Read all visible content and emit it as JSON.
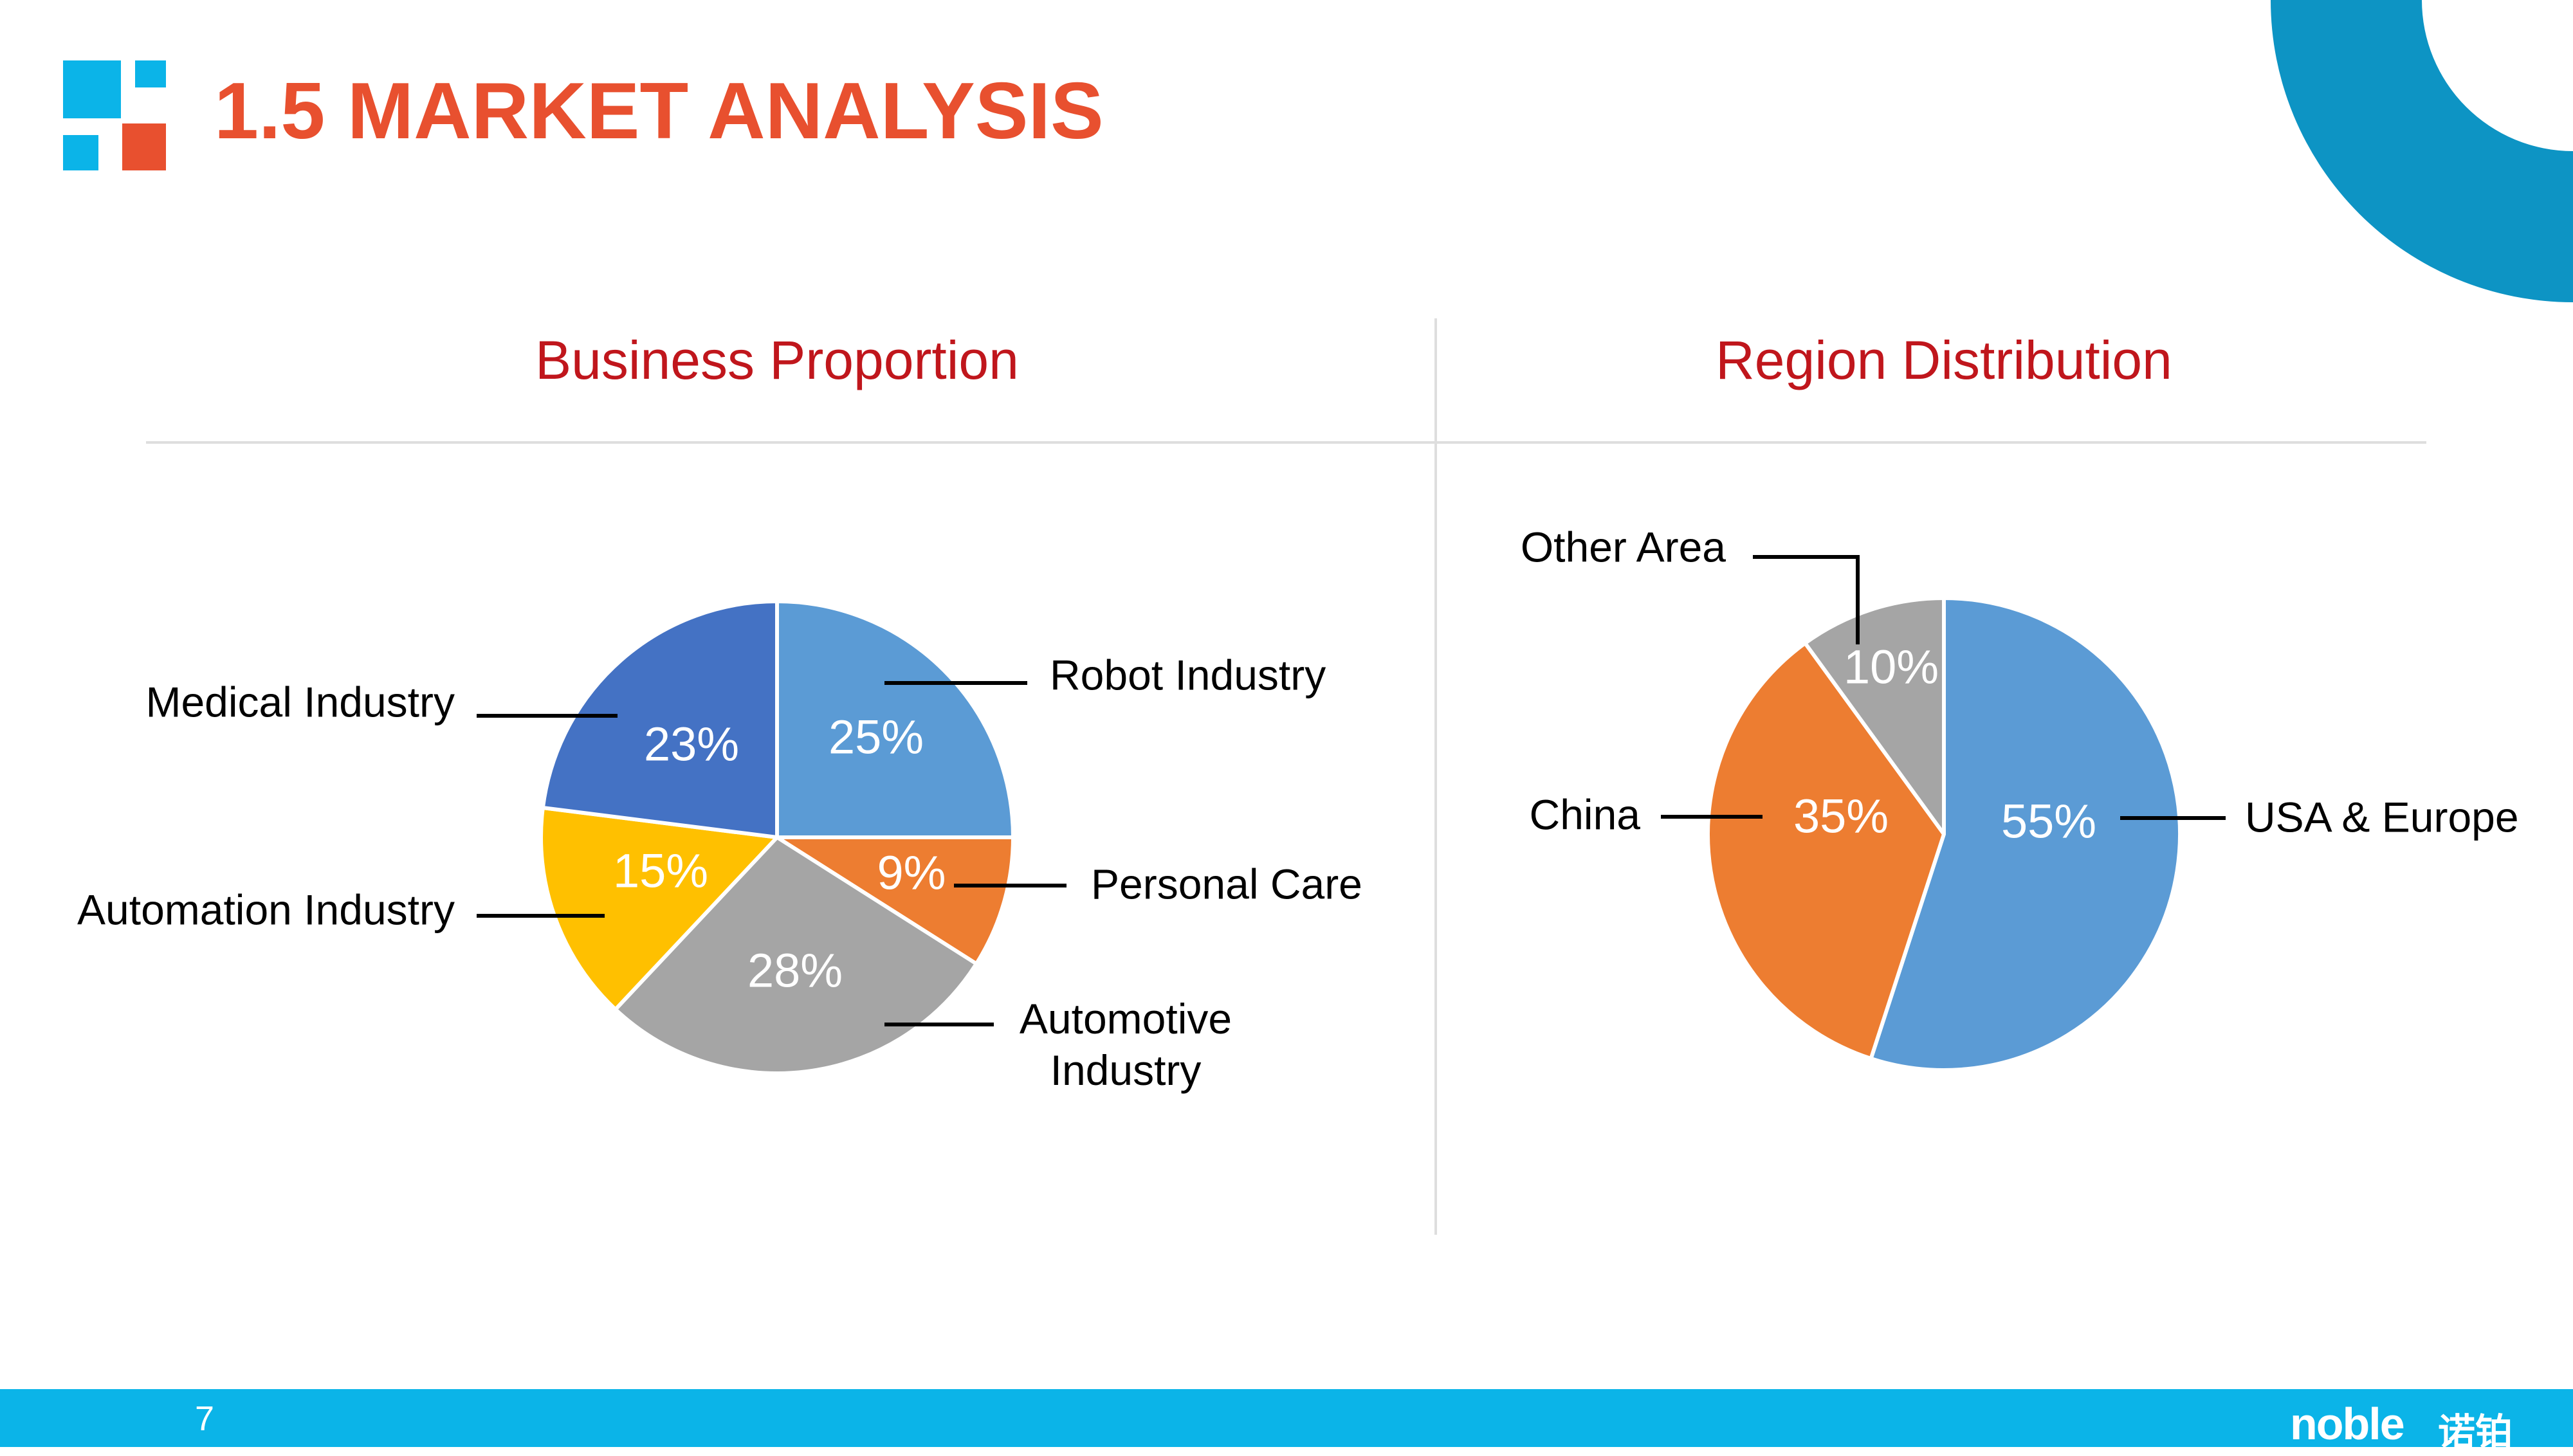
{
  "slide": {
    "title": "1.5 MARKET ANALYSIS",
    "page_number": "7",
    "footer_logo": "noble",
    "footer_logo_cn": "诺铂",
    "colors": {
      "title": "#e8502f",
      "panel_title": "#c0161c",
      "accent_blue": "#0bb4e8",
      "arc": "#0d94c4"
    }
  },
  "panels": {
    "left_title": "Business Proportion",
    "right_title": "Region Distribution"
  },
  "chart_data": [
    {
      "type": "pie",
      "title": "Business Proportion",
      "slices": [
        {
          "label": "Robot Industry",
          "value": 25,
          "value_label": "25%",
          "color": "#5b9bd5"
        },
        {
          "label": "Personal Care",
          "value": 9,
          "value_label": "9%",
          "color": "#ed7d31"
        },
        {
          "label": "Automotive Industry",
          "value": 28,
          "value_label": "28%",
          "color": "#a5a5a5"
        },
        {
          "label": "Automation Industry",
          "value": 15,
          "value_label": "15%",
          "color": "#ffc000"
        },
        {
          "label": "Medical Industry",
          "value": 23,
          "value_label": "23%",
          "color": "#4472c4"
        }
      ]
    },
    {
      "type": "pie",
      "title": "Region Distribution",
      "slices": [
        {
          "label": "USA & Europe",
          "value": 55,
          "value_label": "55%",
          "color": "#5b9bd5"
        },
        {
          "label": "China",
          "value": 35,
          "value_label": "35%",
          "color": "#ed7d31"
        },
        {
          "label": "Other Area",
          "value": 10,
          "value_label": "10%",
          "color": "#a5a5a5"
        }
      ]
    }
  ]
}
